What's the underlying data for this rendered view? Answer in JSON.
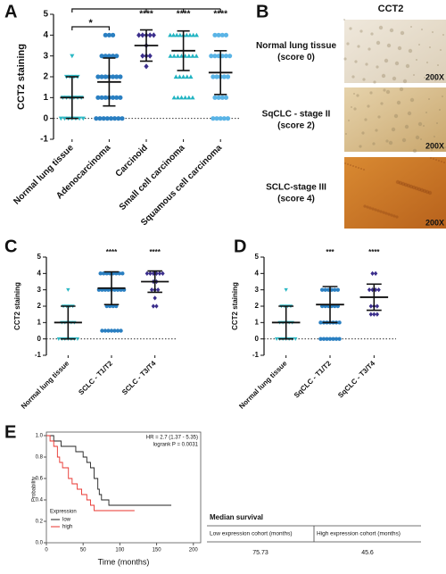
{
  "chart_data": [
    {
      "type": "dotplot",
      "panel_label": "A",
      "ylabel": "CCT2 staining",
      "categories": [
        "Normal lung tissue",
        "Adenocarcinoma",
        "Carcinoid",
        "Small cell carcinoma",
        "Squamous cell carcinoma"
      ],
      "colors": [
        "#2bb8c4",
        "#2a7fc1",
        "#3b2e8c",
        "#22b4c2",
        "#5ab4e6"
      ],
      "markers": [
        "triangle-down",
        "circle",
        "diamond",
        "triangle-up",
        "circle"
      ],
      "points": [
        [
          0,
          0,
          0,
          0,
          0,
          0,
          0,
          1,
          1,
          1,
          1,
          1,
          1,
          2,
          2,
          2,
          2,
          3
        ],
        [
          0,
          0,
          0,
          0,
          0,
          0,
          0,
          0,
          1,
          1,
          1,
          1,
          1,
          1,
          1,
          2,
          2,
          2,
          2,
          2,
          2,
          2,
          3,
          3,
          3,
          3,
          3,
          4,
          4,
          4
        ],
        [
          2.5,
          3,
          3,
          3,
          3.5,
          4,
          4,
          4,
          4,
          4
        ],
        [
          1,
          1,
          1,
          1,
          1,
          1,
          2,
          2,
          2,
          2,
          2,
          3,
          3,
          3,
          3,
          3,
          3,
          3,
          3,
          4,
          4,
          4,
          4,
          4,
          4,
          4,
          4,
          4
        ],
        [
          0,
          0,
          0,
          0,
          0,
          1,
          1,
          1,
          1,
          2,
          2,
          2,
          2,
          2,
          3,
          3,
          3,
          3,
          3,
          3,
          4,
          4,
          4,
          4
        ]
      ],
      "means": [
        1.0,
        1.75,
        3.5,
        3.25,
        2.2
      ],
      "sd": [
        1.0,
        1.15,
        0.75,
        0.95,
        1.05
      ],
      "significance": [
        {
          "category": "Adenocarcinoma",
          "label": "*"
        },
        {
          "category": "Carcinoid",
          "label": "****"
        },
        {
          "category": "Small cell carcinoma",
          "label": "****"
        },
        {
          "category": "Squamous cell carcinoma",
          "label": "****"
        }
      ],
      "brackets": true,
      "baseline": 0,
      "ylim": [
        -1,
        5
      ],
      "yticks": [
        -1,
        0,
        1,
        2,
        3,
        4,
        5
      ]
    },
    {
      "type": "dotplot",
      "panel_label": "C",
      "ylabel": "CCT2 staining",
      "categories": [
        "Normal lung tissue",
        "SCLC - T1/T2",
        "SCLC - T3/T4"
      ],
      "colors": [
        "#2bb8c4",
        "#2a7fc1",
        "#3b2e8c"
      ],
      "markers": [
        "triangle-down",
        "circle",
        "diamond"
      ],
      "points": [
        [
          0,
          0,
          0,
          0,
          0,
          0,
          0,
          1,
          1,
          1,
          1,
          1,
          2,
          2,
          2,
          2,
          3
        ],
        [
          0.5,
          0.5,
          0.5,
          0.5,
          0.5,
          0.5,
          0.5,
          2,
          2,
          2,
          2,
          3,
          3,
          3,
          3,
          3,
          3,
          3,
          3,
          3,
          4,
          4,
          4,
          4,
          4,
          4,
          4,
          4
        ],
        [
          2,
          2,
          2.5,
          3,
          3,
          3,
          3.5,
          3.5,
          4,
          4,
          4,
          4,
          4,
          4
        ]
      ],
      "means": [
        1.0,
        3.1,
        3.5
      ],
      "sd": [
        1.0,
        1.0,
        0.65
      ],
      "significance": [
        {
          "category": "SCLC - T1/T2",
          "label": "****"
        },
        {
          "category": "SCLC - T3/T4",
          "label": "****"
        }
      ],
      "brackets": false,
      "baseline": 0,
      "ylim": [
        -1,
        5
      ],
      "yticks": [
        -1,
        0,
        1,
        2,
        3,
        4,
        5
      ]
    },
    {
      "type": "dotplot",
      "panel_label": "D",
      "ylabel": "CCT2 staining",
      "categories": [
        "Normal lung tissue",
        "SqCLC - T1/T2",
        "SqCLC - T3/T4"
      ],
      "colors": [
        "#2bb8c4",
        "#2a7fc1",
        "#3b2e8c"
      ],
      "markers": [
        "triangle-down",
        "circle",
        "diamond"
      ],
      "points": [
        [
          0,
          0,
          0,
          0,
          0,
          0,
          0,
          1,
          1,
          1,
          1,
          1,
          2,
          2,
          2,
          2,
          3
        ],
        [
          0,
          0,
          0,
          0,
          0,
          0,
          0,
          1,
          1,
          1,
          1,
          1,
          1,
          1,
          2,
          2,
          2,
          2,
          2,
          2,
          3,
          3,
          3,
          3,
          3,
          3
        ],
        [
          1.5,
          1.5,
          1.5,
          2,
          2,
          2,
          3,
          3,
          3,
          3,
          4,
          4
        ]
      ],
      "means": [
        1.0,
        2.1,
        2.55
      ],
      "sd": [
        1.0,
        1.1,
        0.8
      ],
      "significance": [
        {
          "category": "SqCLC - T1/T2",
          "label": "***"
        },
        {
          "category": "SqCLC - T3/T4",
          "label": "****"
        }
      ],
      "brackets": false,
      "baseline": 0,
      "ylim": [
        -1,
        5
      ],
      "yticks": [
        -1,
        0,
        1,
        2,
        3,
        4,
        5
      ]
    },
    {
      "type": "km",
      "panel_label": "E",
      "ylabel": "Probability",
      "xlabel": "Time (months)",
      "annotations": [
        "HR = 2.7 (1.37 - 5.35)",
        "logrank P = 0.0031"
      ],
      "legend_title": "Expression",
      "series": [
        {
          "name": "low",
          "color": "#222222",
          "x": [
            0,
            10,
            20,
            40,
            50,
            55,
            60,
            65,
            70,
            72,
            75,
            85,
            170
          ],
          "values": [
            1.0,
            0.95,
            0.9,
            0.85,
            0.8,
            0.75,
            0.7,
            0.6,
            0.5,
            0.45,
            0.4,
            0.35,
            0.35
          ]
        },
        {
          "name": "high",
          "color": "#e8332e",
          "x": [
            0,
            5,
            10,
            15,
            18,
            22,
            30,
            35,
            42,
            48,
            55,
            60,
            65,
            120
          ],
          "values": [
            1.0,
            0.95,
            0.9,
            0.8,
            0.75,
            0.7,
            0.6,
            0.55,
            0.5,
            0.45,
            0.4,
            0.35,
            0.3,
            0.3
          ]
        }
      ],
      "xlim": [
        0,
        210
      ],
      "xticks": [
        0,
        50,
        100,
        150,
        200
      ],
      "ylim": [
        0,
        1.0
      ],
      "yticks": [
        {
          "value": 0,
          "label": "0.0"
        },
        {
          "value": 0.2,
          "label": "0.2"
        },
        {
          "value": 0.4,
          "label": "0.4"
        },
        {
          "value": 0.6,
          "label": "0.6"
        },
        {
          "value": 0.8,
          "label": "0.8"
        },
        {
          "value": 1.0,
          "label": "1.0"
        }
      ]
    }
  ],
  "images": {
    "panel_label": "B",
    "title": "CCT2",
    "items": [
      {
        "label": [
          "Normal lung tissue",
          "(score 0)"
        ],
        "magnification": "200X"
      },
      {
        "label": [
          "SqCLC - stage II",
          "(score 2)"
        ],
        "magnification": "200X"
      },
      {
        "label": [
          "SCLC-stage III",
          "(score 4)"
        ],
        "magnification": "200X"
      }
    ]
  },
  "table": {
    "title": "Median survival",
    "headers": [
      "Low expression cohort (months)",
      "High expression cohort (months)"
    ],
    "rows": [
      [
        75.73,
        45.6
      ]
    ]
  }
}
